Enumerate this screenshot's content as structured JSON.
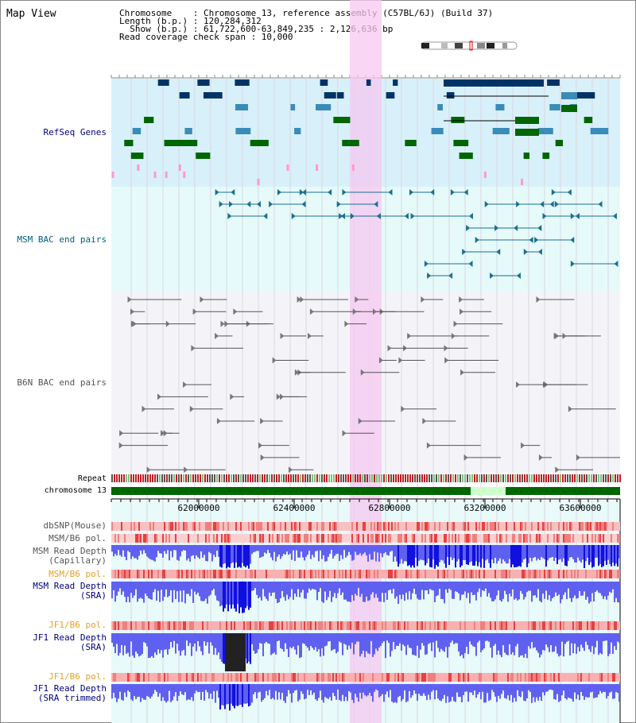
{
  "view_title": "Map View",
  "header": {
    "chromosome_line": "Chromosome    : Chromosome 13, reference assembly (C57BL/6J) (Build 37)",
    "length_line": "Length (b.p.) : 120,284,312",
    "show_line": "  Show (b.p.) : 61,722,600-63,849,235 : 2,126,636 bp",
    "coverage_line": "Read coverage check span : 10,000"
  },
  "tracks": {
    "refseq": "RefSeq Genes",
    "msm_bac": "MSM BAC end pairs",
    "b6n_bac": "B6N BAC end pairs",
    "repeat": "Repeat",
    "chromosome": "chromosome 13",
    "dbsnp": "dbSNP(Mouse)",
    "msm_b6_pol_1": "MSM/B6 pol.",
    "msm_read_depth_cap": "MSM Read Depth\n(Capillary)",
    "msm_b6_pol_2": "MSM/B6 pol.",
    "msm_read_depth_sra": "MSM Read Depth\n(SRA)",
    "jf1_b6_pol_1": "JF1/B6 pol.",
    "jf1_read_depth_sra": "JF1 Read Depth\n(SRA)",
    "jf1_b6_pol_2": "JF1/B6 pol.",
    "jf1_read_depth_trim": "JF1 Read Depth\n(SRA trimmed)"
  },
  "axis": {
    "ticks": [
      "62000000",
      "62400000",
      "62800000",
      "63200000",
      "63600000"
    ]
  },
  "colors": {
    "refseq_bg": "#d8f0fa",
    "msm_bg": "#e6fafa",
    "b6n_bg": "#f4f4f8",
    "highlight": "#f5c8f0",
    "gene_dark": "#003366",
    "gene_mid": "#3a8cb8",
    "gene_green": "#006600",
    "depth_blue": "#2020ee",
    "pol_red": "#ee3030",
    "label_navy": "#000080",
    "label_teal": "#006080",
    "label_orange": "#e8a020"
  }
}
